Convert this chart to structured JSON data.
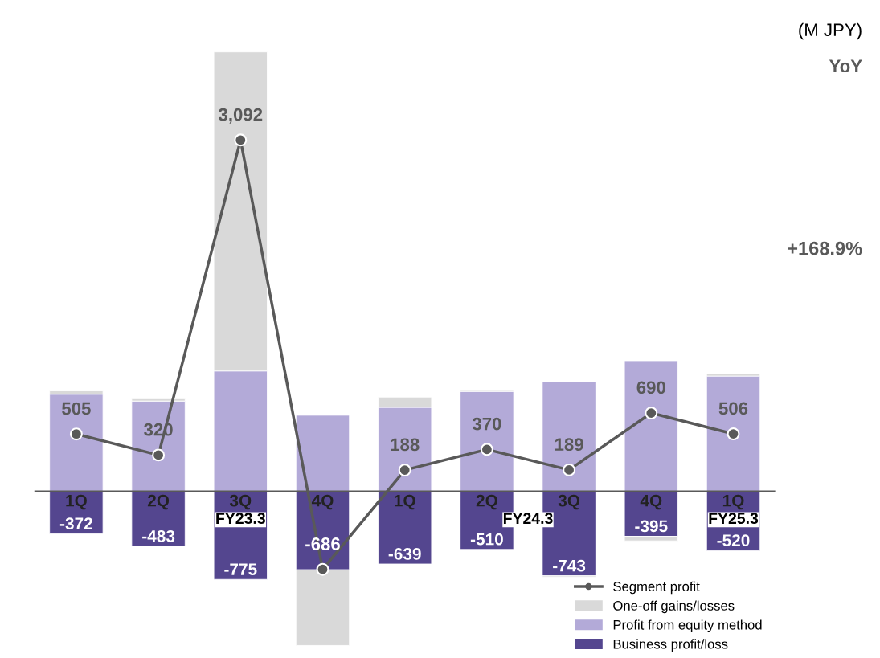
{
  "chart_data": {
    "type": "bar",
    "stacked": true,
    "categories": [
      "1Q",
      "2Q",
      "3Q",
      "4Q",
      "1Q",
      "2Q",
      "3Q",
      "4Q",
      "1Q"
    ],
    "series": [
      {
        "name": "Business profit/loss",
        "color": "#54468f",
        "values": [
          -372,
          -483,
          -775,
          -690,
          -639,
          -510,
          -743,
          -395,
          -520
        ],
        "value_labels": [
          "-372",
          "-483",
          "-775",
          null,
          "-639",
          "-510",
          "-743",
          "-395",
          "-520"
        ]
      },
      {
        "name": "Profit from equity method",
        "color": "#b3aad8",
        "values": [
          855,
          795,
          1060,
          670,
          740,
          880,
          965,
          1150,
          1015
        ]
      },
      {
        "name": "One-off gains/losses",
        "color": "#d9d9d9",
        "values": [
          30,
          20,
          2807,
          -666,
          90,
          8,
          -10,
          -40,
          20
        ]
      },
      {
        "name": "Segment profit",
        "type": "line",
        "color": "#595959",
        "marker": "circle",
        "values": [
          505,
          320,
          3092,
          -686,
          188,
          370,
          189,
          690,
          506
        ],
        "value_labels": [
          "505",
          "320",
          "3,092",
          "-686",
          "188",
          "370",
          "189",
          "690",
          "506"
        ]
      }
    ],
    "legend": "bottom right",
    "annotations": [
      "(M JPY)",
      "YoY",
      "+168.9%",
      "FY23.3",
      "FY24.3",
      "FY25.3"
    ]
  }
}
